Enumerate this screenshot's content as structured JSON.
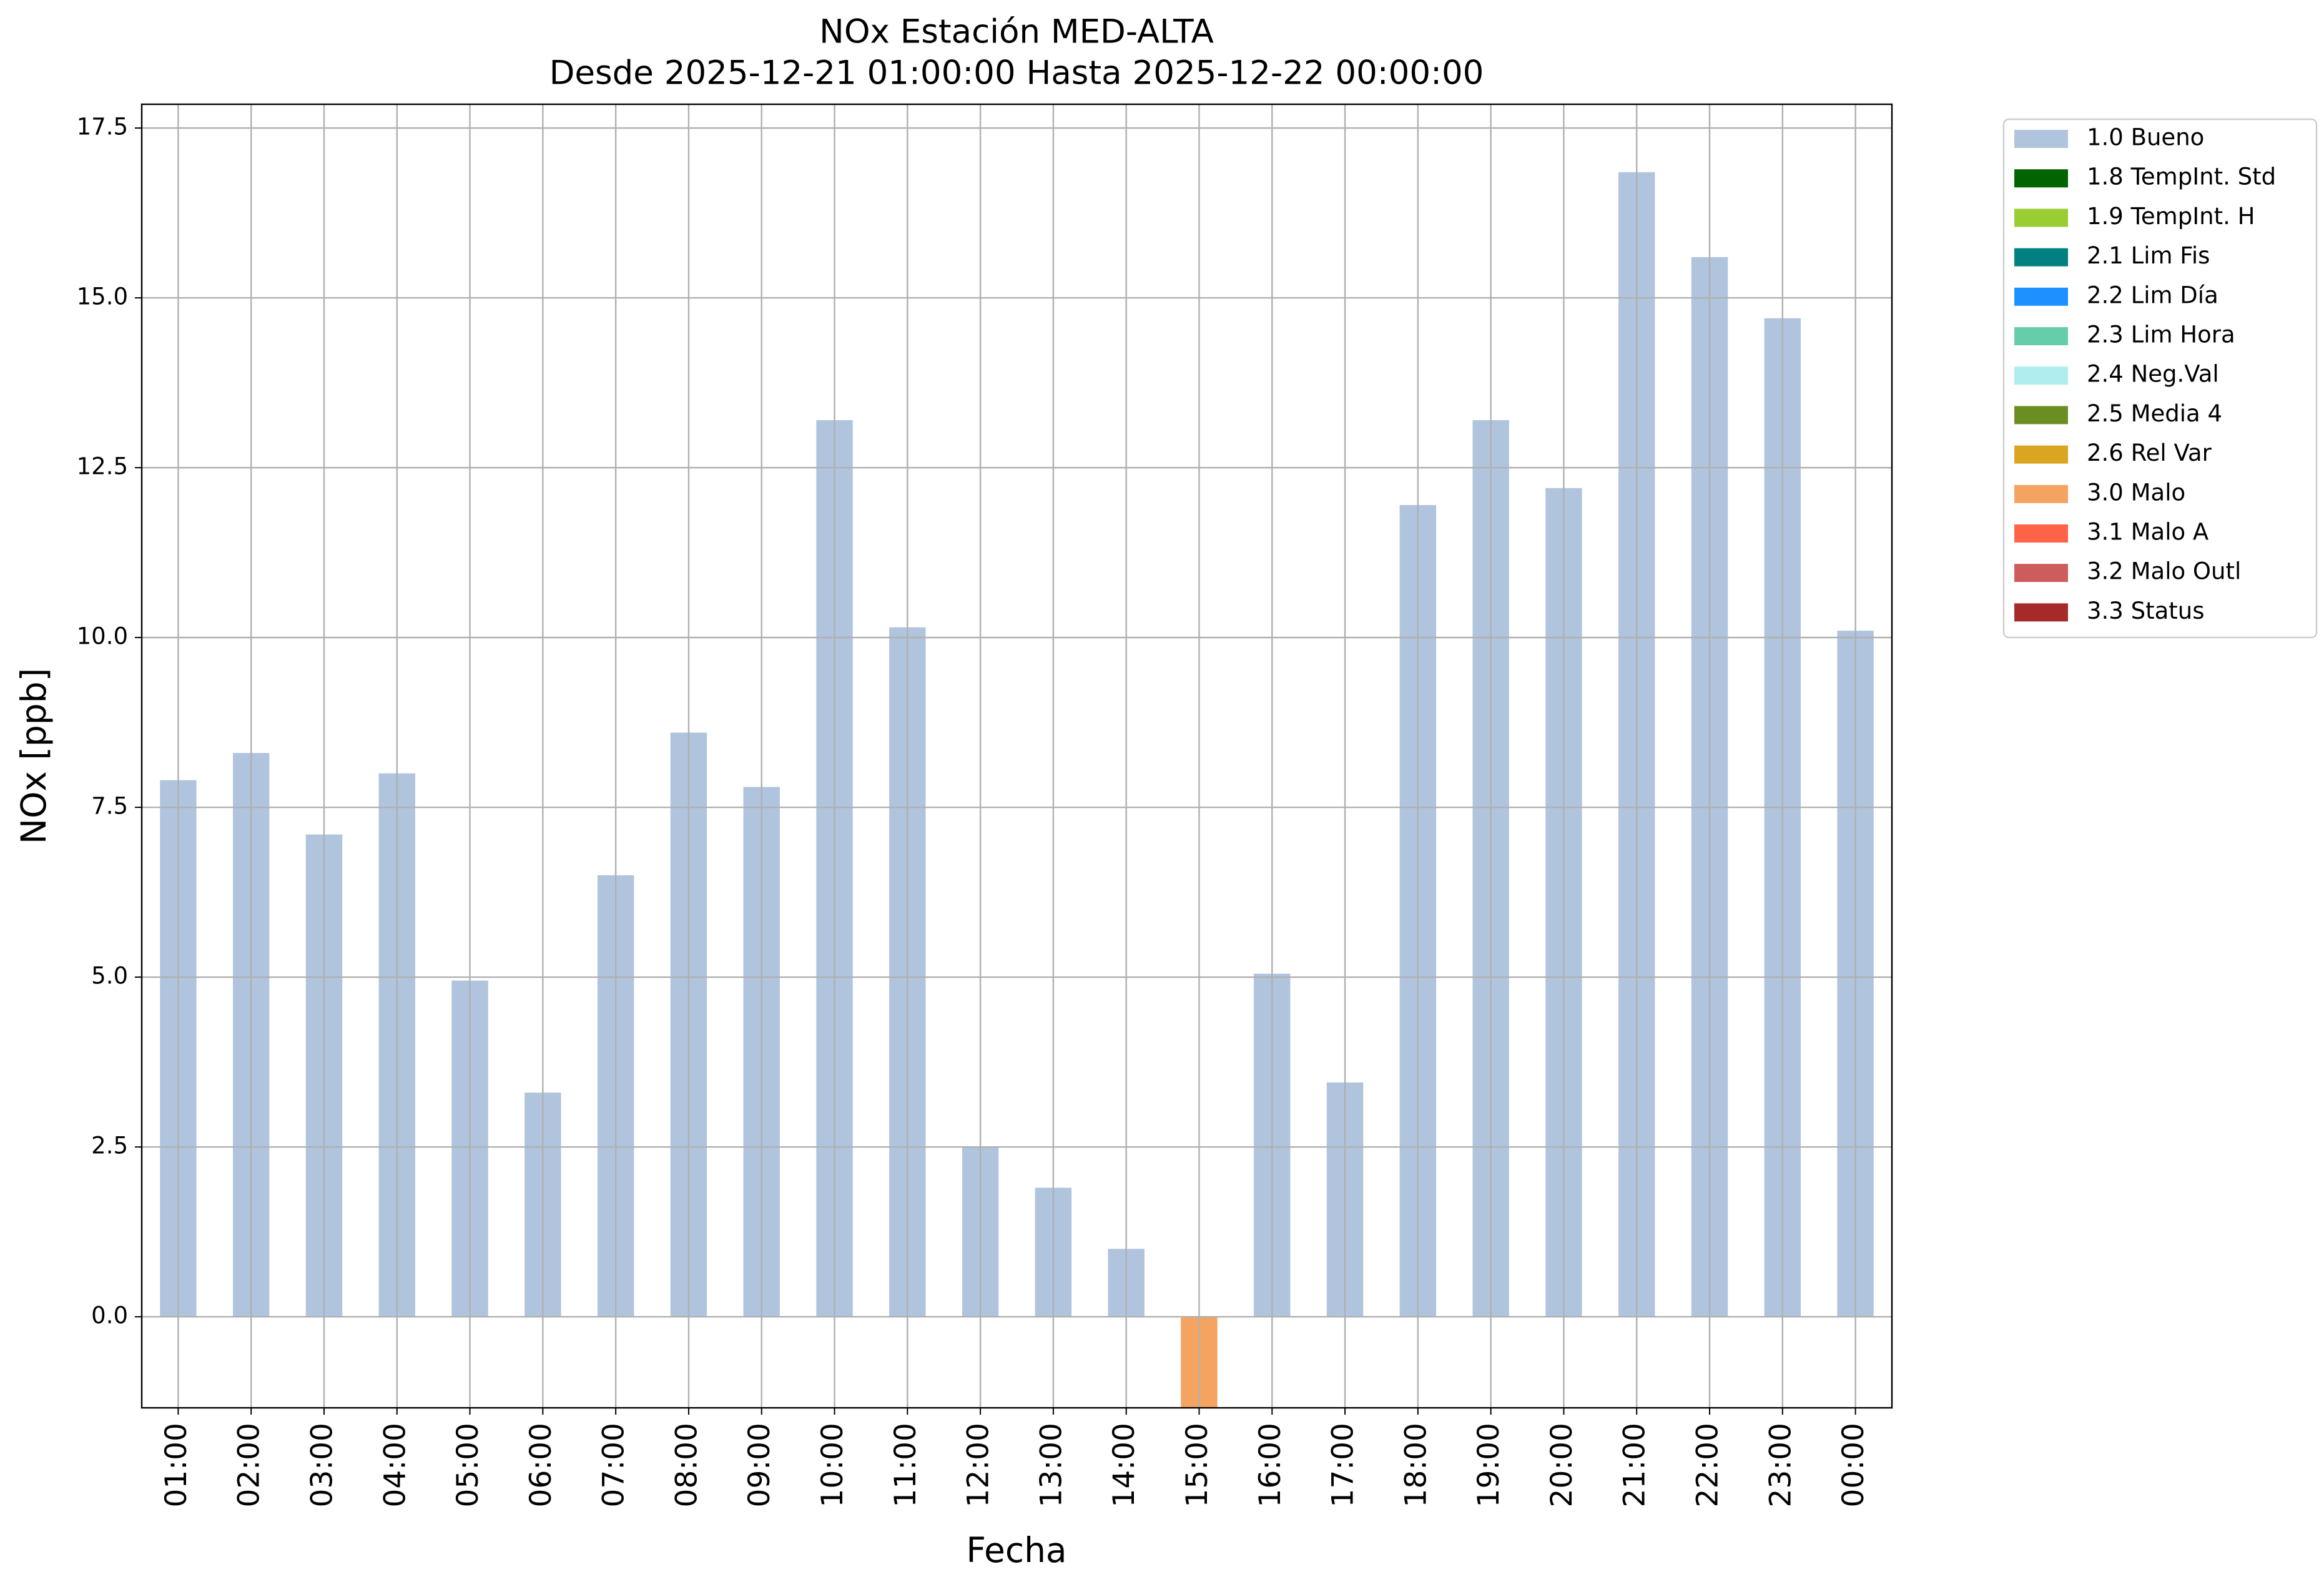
{
  "chart_data": {
    "type": "bar",
    "stacked": true,
    "title": "NOx Estación MED-ALTA",
    "subtitle": "Desde 2025-12-21 01:00:00 Hasta 2025-12-22 00:00:00",
    "x_label": "Fecha",
    "y_label": "NOx [ppb]",
    "categories": [
      "01:00",
      "02:00",
      "03:00",
      "04:00",
      "05:00",
      "06:00",
      "07:00",
      "08:00",
      "09:00",
      "10:00",
      "11:00",
      "12:00",
      "13:00",
      "14:00",
      "15:00",
      "16:00",
      "17:00",
      "18:00",
      "19:00",
      "20:00",
      "21:00",
      "22:00",
      "23:00",
      "00:00"
    ],
    "series": [
      {
        "name": "1.0 Bueno",
        "color": "#b0c4de",
        "values": [
          7.9,
          8.3,
          7.1,
          8.0,
          4.95,
          3.3,
          6.5,
          8.6,
          7.8,
          13.2,
          10.15,
          2.5,
          1.9,
          1.0,
          null,
          5.05,
          3.45,
          11.95,
          13.2,
          12.2,
          16.85,
          15.6,
          14.7,
          10.1
        ]
      },
      {
        "name": "1.8 TempInt. Std",
        "color": "#006400",
        "values": [
          null,
          null,
          null,
          null,
          null,
          null,
          null,
          null,
          null,
          null,
          null,
          null,
          null,
          null,
          null,
          null,
          null,
          null,
          null,
          null,
          null,
          null,
          null,
          null
        ]
      },
      {
        "name": "1.9 TempInt. H",
        "color": "#9acd32",
        "values": [
          null,
          null,
          null,
          null,
          null,
          null,
          null,
          null,
          null,
          null,
          null,
          null,
          null,
          null,
          null,
          null,
          null,
          null,
          null,
          null,
          null,
          null,
          null,
          null
        ]
      },
      {
        "name": "2.1 Lim Fis",
        "color": "#008080",
        "values": [
          null,
          null,
          null,
          null,
          null,
          null,
          null,
          null,
          null,
          null,
          null,
          null,
          null,
          null,
          null,
          null,
          null,
          null,
          null,
          null,
          null,
          null,
          null,
          null
        ]
      },
      {
        "name": "2.2 Lim Día",
        "color": "#1e90ff",
        "values": [
          null,
          null,
          null,
          null,
          null,
          null,
          null,
          null,
          null,
          null,
          null,
          null,
          null,
          null,
          null,
          null,
          null,
          null,
          null,
          null,
          null,
          null,
          null,
          null
        ]
      },
      {
        "name": "2.3 Lim Hora",
        "color": "#66cdaa",
        "values": [
          null,
          null,
          null,
          null,
          null,
          null,
          null,
          null,
          null,
          null,
          null,
          null,
          null,
          null,
          null,
          null,
          null,
          null,
          null,
          null,
          null,
          null,
          null,
          null
        ]
      },
      {
        "name": "2.4 Neg.Val",
        "color": "#afeeee",
        "values": [
          null,
          null,
          null,
          null,
          null,
          null,
          null,
          null,
          null,
          null,
          null,
          null,
          null,
          null,
          null,
          null,
          null,
          null,
          null,
          null,
          null,
          null,
          null,
          null
        ]
      },
      {
        "name": "2.5 Media 4",
        "color": "#6b8e23",
        "values": [
          null,
          null,
          null,
          null,
          null,
          null,
          null,
          null,
          null,
          null,
          null,
          null,
          null,
          null,
          null,
          null,
          null,
          null,
          null,
          null,
          null,
          null,
          null,
          null
        ]
      },
      {
        "name": "2.6 Rel Var",
        "color": "#daa520",
        "values": [
          null,
          null,
          null,
          null,
          null,
          null,
          null,
          null,
          null,
          null,
          null,
          null,
          null,
          null,
          null,
          null,
          null,
          null,
          null,
          null,
          null,
          null,
          null,
          null
        ]
      },
      {
        "name": "3.0 Malo",
        "color": "#f4a460",
        "values": [
          null,
          null,
          null,
          null,
          null,
          null,
          null,
          null,
          null,
          null,
          null,
          null,
          null,
          null,
          -1.5,
          null,
          null,
          null,
          null,
          null,
          null,
          null,
          null,
          null
        ]
      },
      {
        "name": "3.1 Malo A",
        "color": "#ff6347",
        "values": [
          null,
          null,
          null,
          null,
          null,
          null,
          null,
          null,
          null,
          null,
          null,
          null,
          null,
          null,
          null,
          null,
          null,
          null,
          null,
          null,
          null,
          null,
          null,
          null
        ]
      },
      {
        "name": "3.2 Malo Outl",
        "color": "#cd5c5c",
        "values": [
          null,
          null,
          null,
          null,
          null,
          null,
          null,
          null,
          null,
          null,
          null,
          null,
          null,
          null,
          null,
          null,
          null,
          null,
          null,
          null,
          null,
          null,
          null,
          null
        ]
      },
      {
        "name": "3.3 Status",
        "color": "#a52a2a",
        "values": [
          null,
          null,
          null,
          null,
          null,
          null,
          null,
          null,
          null,
          null,
          null,
          null,
          null,
          null,
          null,
          null,
          null,
          null,
          null,
          null,
          null,
          null,
          null,
          null
        ]
      }
    ],
    "ylim": [
      -1.34,
      17.85
    ],
    "yticks": [
      {
        "value": 0,
        "label": "0.0"
      },
      2.5,
      {
        "value": 5,
        "label": "5.0"
      },
      7.5,
      {
        "value": 10,
        "label": "10.0"
      },
      12.5,
      {
        "value": 15,
        "label": "15.0"
      },
      17.5
    ],
    "grid": true,
    "legend": "outside right"
  }
}
